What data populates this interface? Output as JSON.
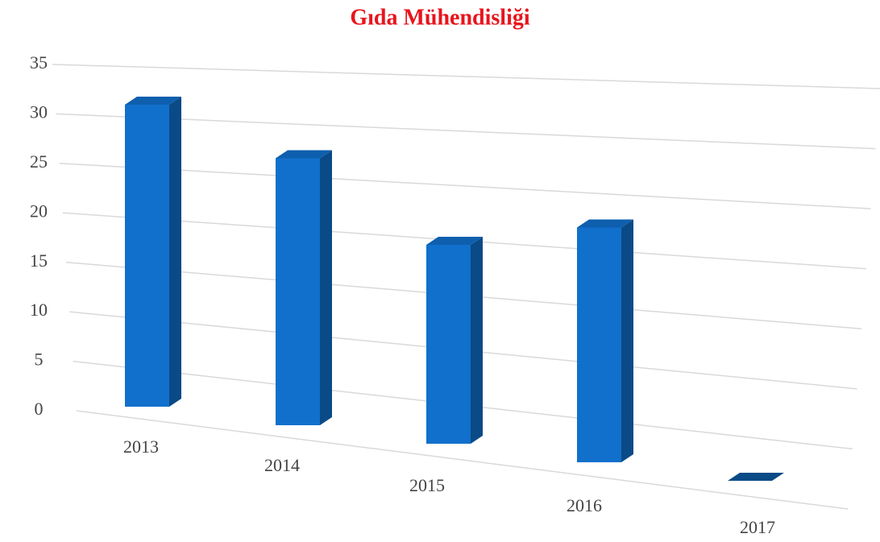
{
  "chart_data": {
    "type": "bar3d",
    "title": "Gıda Mühendisliği",
    "categories": [
      "2013",
      "2014",
      "2015",
      "2016",
      "2017"
    ],
    "values": [
      30,
      26,
      19,
      22,
      0
    ],
    "color": "#1170cc",
    "ylim": [
      0,
      35
    ],
    "yticks": [
      0,
      5,
      10,
      15,
      20,
      25,
      30,
      35
    ],
    "grid": true
  }
}
